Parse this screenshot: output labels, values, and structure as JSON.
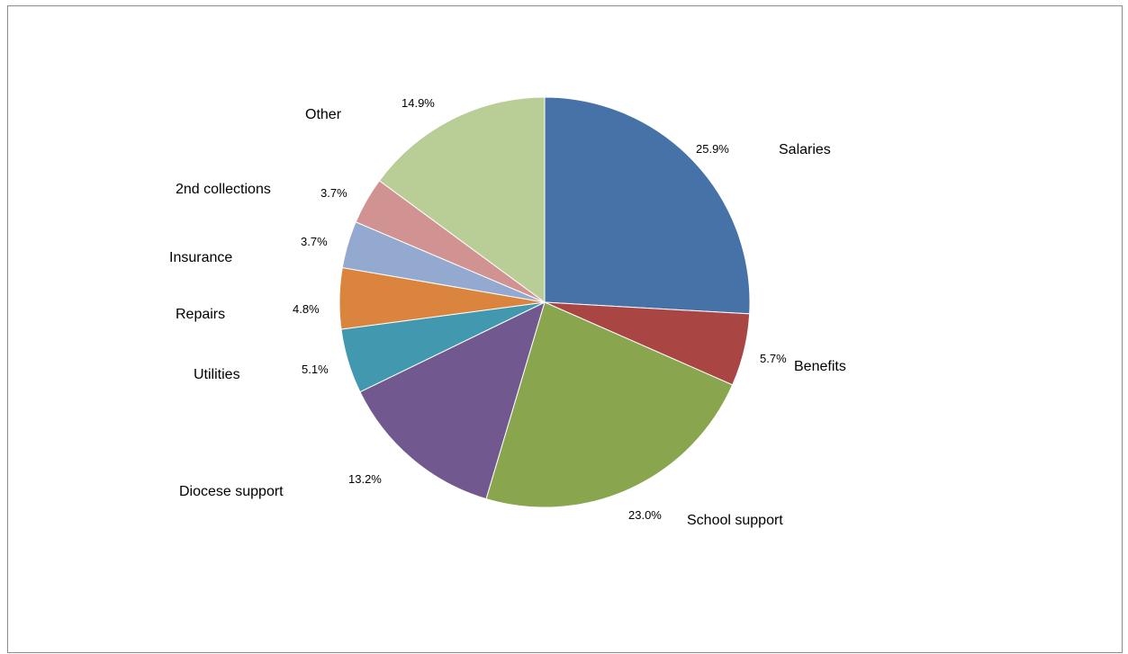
{
  "chart_data": {
    "type": "pie",
    "categories": [
      "Salaries",
      "Benefits",
      "School support",
      "Diocese support",
      "Utilities",
      "Repairs",
      "Insurance",
      "2nd collections",
      "Other"
    ],
    "values": [
      25.9,
      5.7,
      23.0,
      13.2,
      5.1,
      4.8,
      3.7,
      3.7,
      14.9
    ],
    "value_labels": [
      "25.9%",
      "5.7%",
      "23.0%",
      "13.2%",
      "5.1%",
      "4.8%",
      "3.7%",
      "3.7%",
      "14.9%"
    ],
    "colors": [
      "#4672A8",
      "#A94643",
      "#89A54E",
      "#71588F",
      "#4198AF",
      "#DB843D",
      "#93A9CF",
      "#D19392",
      "#B9CD96"
    ],
    "start_angle": "12 o'clock",
    "direction": "clockwise",
    "legend": "none",
    "labels_outside": true
  }
}
